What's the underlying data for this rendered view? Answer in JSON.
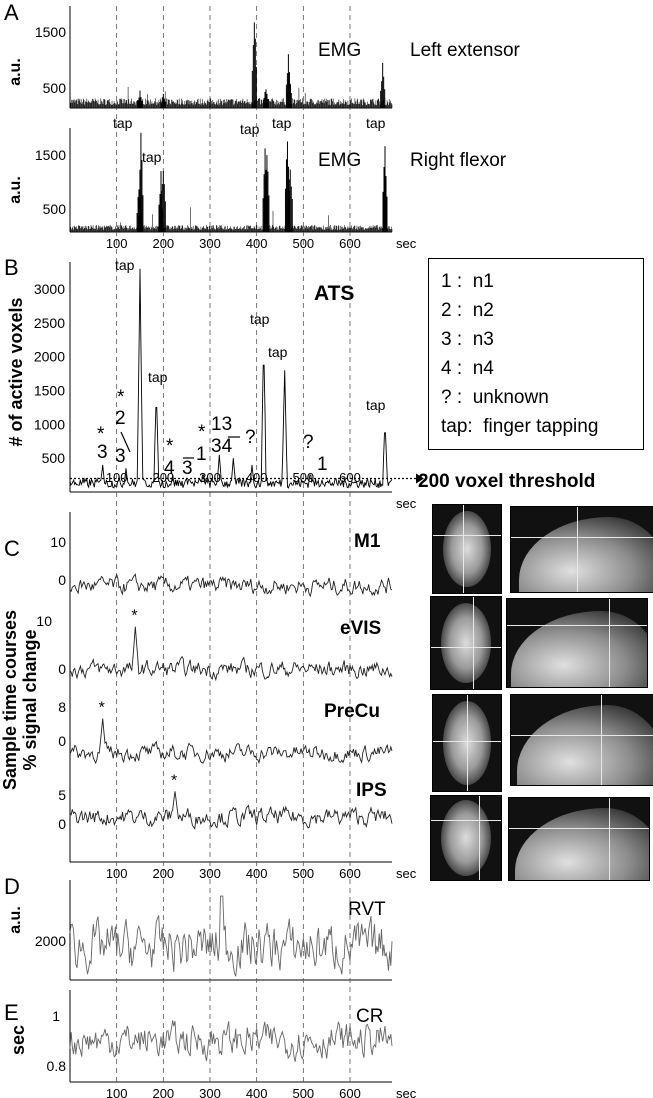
{
  "panel_letters": [
    "A",
    "B",
    "C",
    "D",
    "E"
  ],
  "x_axis": {
    "ticks": [
      100,
      200,
      300,
      400,
      500,
      600
    ],
    "unit": "sec",
    "dashed_lines": [
      100,
      200,
      300,
      400,
      500,
      600
    ]
  },
  "panelA": {
    "top": {
      "ylabel": "a.u.",
      "yticks": [
        500,
        1500
      ],
      "signal": "EMG",
      "muscle": "Left extensor"
    },
    "bottom": {
      "ylabel": "a.u.",
      "yticks": [
        500,
        1500
      ],
      "signal": "EMG",
      "muscle": "Right flexor"
    },
    "tap_label": "tap"
  },
  "panelB": {
    "title": "ATS",
    "ylabel": "# of active voxels",
    "yticks": [
      500,
      1000,
      1500,
      2000,
      2500,
      3000
    ],
    "threshold_label": "200 voxel threshold",
    "event_labels": {
      "tap": "tap",
      "star": "*",
      "q": "?",
      "n1": "1",
      "n2": "2",
      "n3": "3",
      "n4": "4",
      "n13": "13",
      "n34": "34"
    },
    "legend": [
      {
        "key": "1",
        "sep": ":",
        "value": "n1"
      },
      {
        "key": "2",
        "sep": ":",
        "value": "n2"
      },
      {
        "key": "3",
        "sep": ":",
        "value": "n3"
      },
      {
        "key": "4",
        "sep": ":",
        "value": "n4"
      },
      {
        "key": "?",
        "sep": ":",
        "value": "unknown"
      },
      {
        "key": "tap",
        "sep": ":",
        "value": "finger tapping"
      }
    ]
  },
  "panelC": {
    "ylabel_line1": "Sample time courses",
    "ylabel_line2": "% signal change",
    "traces": [
      {
        "name": "M1",
        "yticks": [
          0,
          10
        ]
      },
      {
        "name": "eVIS",
        "yticks": [
          0,
          10
        ]
      },
      {
        "name": "PreCu",
        "yticks": [
          0,
          8
        ]
      },
      {
        "name": "IPS",
        "yticks": [
          0,
          5
        ]
      }
    ],
    "star": "*"
  },
  "panelD": {
    "name": "RVT",
    "ylabel": "a.u.",
    "yticks": [
      2000
    ]
  },
  "panelE": {
    "name": "CR",
    "ylabel": "sec",
    "yticks": [
      0.8,
      1
    ]
  },
  "chart_data": [
    {
      "type": "line",
      "panel": "A-top",
      "title": "EMG",
      "series": [
        {
          "name": "Left extensor"
        }
      ],
      "xlabel": "sec",
      "ylabel": "a.u.",
      "x_range": [
        0,
        690
      ],
      "ylim": [
        0,
        2000
      ],
      "spikes": [
        {
          "x": 150,
          "y": 350
        },
        {
          "x": 200,
          "y": 300
        },
        {
          "x": 395,
          "y": 1900
        },
        {
          "x": 420,
          "y": 450
        },
        {
          "x": 468,
          "y": 1150
        },
        {
          "x": 470,
          "y": 800
        },
        {
          "x": 670,
          "y": 900
        }
      ]
    },
    {
      "type": "line",
      "panel": "A-bottom",
      "title": "EMG",
      "series": [
        {
          "name": "Right flexor"
        }
      ],
      "xlabel": "sec",
      "ylabel": "a.u.",
      "x_range": [
        0,
        690
      ],
      "ylim": [
        0,
        1900
      ],
      "spikes": [
        {
          "x": 148,
          "y": 900
        },
        {
          "x": 152,
          "y": 1900
        },
        {
          "x": 195,
          "y": 1150
        },
        {
          "x": 200,
          "y": 1350
        },
        {
          "x": 418,
          "y": 1750
        },
        {
          "x": 422,
          "y": 1550
        },
        {
          "x": 466,
          "y": 1900
        },
        {
          "x": 472,
          "y": 1400
        },
        {
          "x": 675,
          "y": 1750
        }
      ],
      "tap_times": [
        120,
        160,
        390,
        445,
        675
      ]
    },
    {
      "type": "line",
      "panel": "B",
      "title": "ATS",
      "xlabel": "sec",
      "ylabel": "# of active voxels",
      "x_range": [
        0,
        690
      ],
      "ylim": [
        0,
        3400
      ],
      "threshold": 200,
      "peaks": [
        {
          "x": 70,
          "y": 400
        },
        {
          "x": 120,
          "y": 350
        },
        {
          "x": 150,
          "y": 3300
        },
        {
          "x": 185,
          "y": 1500
        },
        {
          "x": 220,
          "y": 250
        },
        {
          "x": 255,
          "y": 220
        },
        {
          "x": 285,
          "y": 300
        },
        {
          "x": 320,
          "y": 550
        },
        {
          "x": 350,
          "y": 500
        },
        {
          "x": 390,
          "y": 400
        },
        {
          "x": 415,
          "y": 2250
        },
        {
          "x": 460,
          "y": 1800
        },
        {
          "x": 515,
          "y": 300
        },
        {
          "x": 540,
          "y": 180
        },
        {
          "x": 675,
          "y": 1050
        }
      ]
    },
    {
      "type": "line",
      "panel": "C",
      "series": [
        {
          "name": "M1",
          "ylim": [
            -3,
            15
          ]
        },
        {
          "name": "eVIS",
          "ylim": [
            -4,
            14
          ],
          "marked_peak": {
            "x": 140,
            "y": 9
          }
        },
        {
          "name": "PreCu",
          "ylim": [
            -3,
            11
          ],
          "marked_peak": {
            "x": 70,
            "y": 6
          }
        },
        {
          "name": "IPS",
          "ylim": [
            -7,
            7
          ],
          "marked_peak": {
            "x": 225,
            "y": 4
          }
        }
      ],
      "x_range": [
        0,
        690
      ],
      "xlabel": "sec",
      "ylabel": "Sample time courses % signal change"
    },
    {
      "type": "line",
      "panel": "D",
      "series": [
        {
          "name": "RVT"
        }
      ],
      "ylabel": "a.u.",
      "x_range": [
        0,
        690
      ],
      "ylim": [
        1400,
        3200
      ],
      "baseline": 2000
    },
    {
      "type": "line",
      "panel": "E",
      "series": [
        {
          "name": "CR"
        }
      ],
      "ylabel": "sec",
      "x_range": [
        0,
        690
      ],
      "ylim": [
        0.75,
        1.08
      ],
      "baseline": 0.9
    }
  ]
}
